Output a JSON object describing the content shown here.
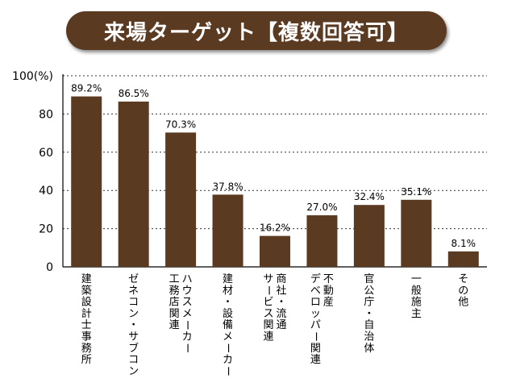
{
  "title": "来場ターゲット【複数回答可】",
  "colors": {
    "bar": "#5b3a22",
    "title_bg": "#5b3a22",
    "title_text": "#ffffff"
  },
  "chart_data": {
    "type": "bar",
    "title": "来場ターゲット【複数回答可】",
    "categories": [
      "建築設計士事務所",
      "ゼネコン・サブコン",
      "ハウスメーカー\n工務店関連",
      "建材・設備メーカー",
      "商社・流通\nサービス関連",
      "不動産\nデベロッパー関連",
      "官公庁・自治体",
      "一般施主",
      "その他"
    ],
    "values": [
      89.2,
      86.5,
      70.3,
      37.8,
      16.2,
      27.0,
      32.4,
      35.1,
      8.1
    ],
    "value_labels": [
      "89.2%",
      "86.5%",
      "70.3%",
      "37.8%",
      "16.2%",
      "27.0%",
      "32.4%",
      "35.1%",
      "8.1%"
    ],
    "yticks": [
      "0",
      "20",
      "40",
      "60",
      "80",
      "100(%)"
    ],
    "ytick_values": [
      0,
      20,
      40,
      60,
      80,
      100
    ],
    "ylim": [
      0,
      100
    ],
    "grid": true,
    "grid_style": "dotted"
  }
}
